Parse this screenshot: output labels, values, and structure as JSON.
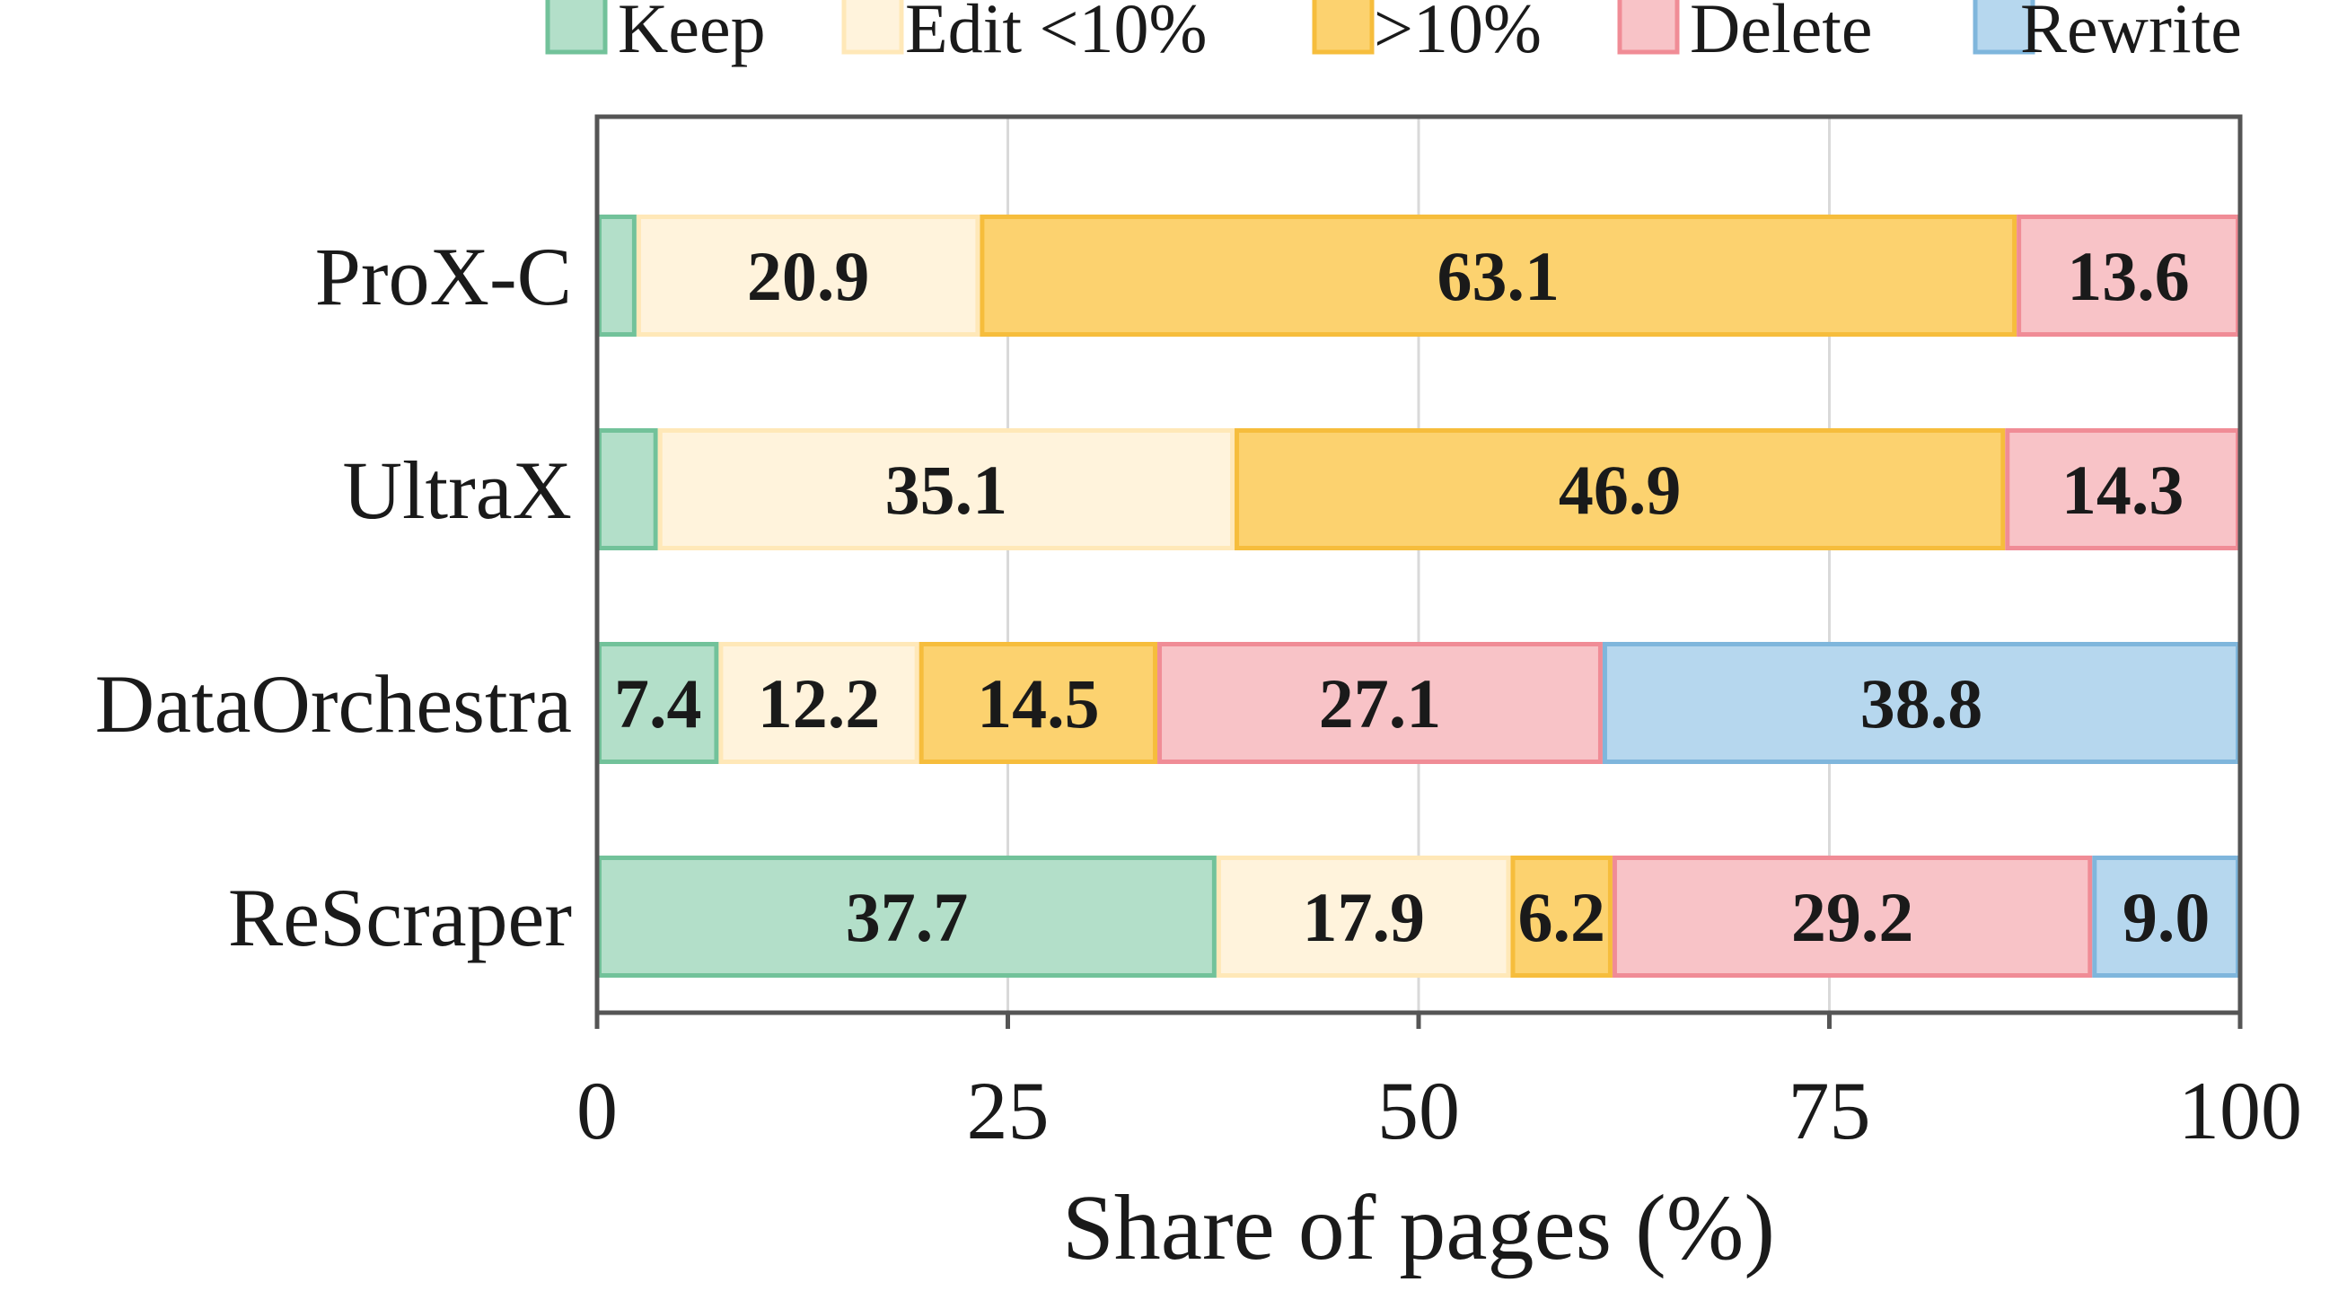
{
  "chart_data": {
    "type": "bar",
    "orientation": "horizontal",
    "stacked": true,
    "title": "",
    "xlabel": "Share of pages (%)",
    "ylabel": "",
    "xlim": [
      0,
      100
    ],
    "x_ticks": [
      "0",
      "25",
      "50",
      "75",
      "100"
    ],
    "grid": "vertical",
    "legend_position": "top",
    "categories": [
      "ProX-C",
      "UltraX",
      "DataOrchestra",
      "ReScraper"
    ],
    "series": [
      {
        "name": "Keep",
        "fill": "#b3dfc9",
        "edge": "#72c29a",
        "values": [
          2.4,
          3.7,
          7.4,
          37.7
        ]
      },
      {
        "name": "Edit <10%",
        "fill": "#fff3dc",
        "edge": "#ffe8b8",
        "values": [
          20.9,
          35.1,
          12.2,
          17.9
        ]
      },
      {
        "name": ">10%",
        "fill": "#fcd26f",
        "edge": "#f6bd3c",
        "values": [
          63.1,
          46.9,
          14.5,
          6.2
        ]
      },
      {
        "name": "Delete",
        "fill": "#f8c3c7",
        "edge": "#f08c96",
        "values": [
          13.6,
          14.3,
          27.1,
          29.2
        ]
      },
      {
        "name": "Rewrite",
        "fill": "#b6d7ee",
        "edge": "#7fb6dc",
        "values": [
          0,
          0,
          38.8,
          9.0
        ]
      }
    ],
    "data_labels": [
      [
        "",
        "20.9",
        "63.1",
        "13.6",
        ""
      ],
      [
        "",
        "35.1",
        "46.9",
        "14.3",
        ""
      ],
      [
        "7.4",
        "12.2",
        "14.5",
        "27.1",
        "38.8"
      ],
      [
        "37.7",
        "17.9",
        "6.2",
        "29.2",
        "9.0"
      ]
    ]
  }
}
